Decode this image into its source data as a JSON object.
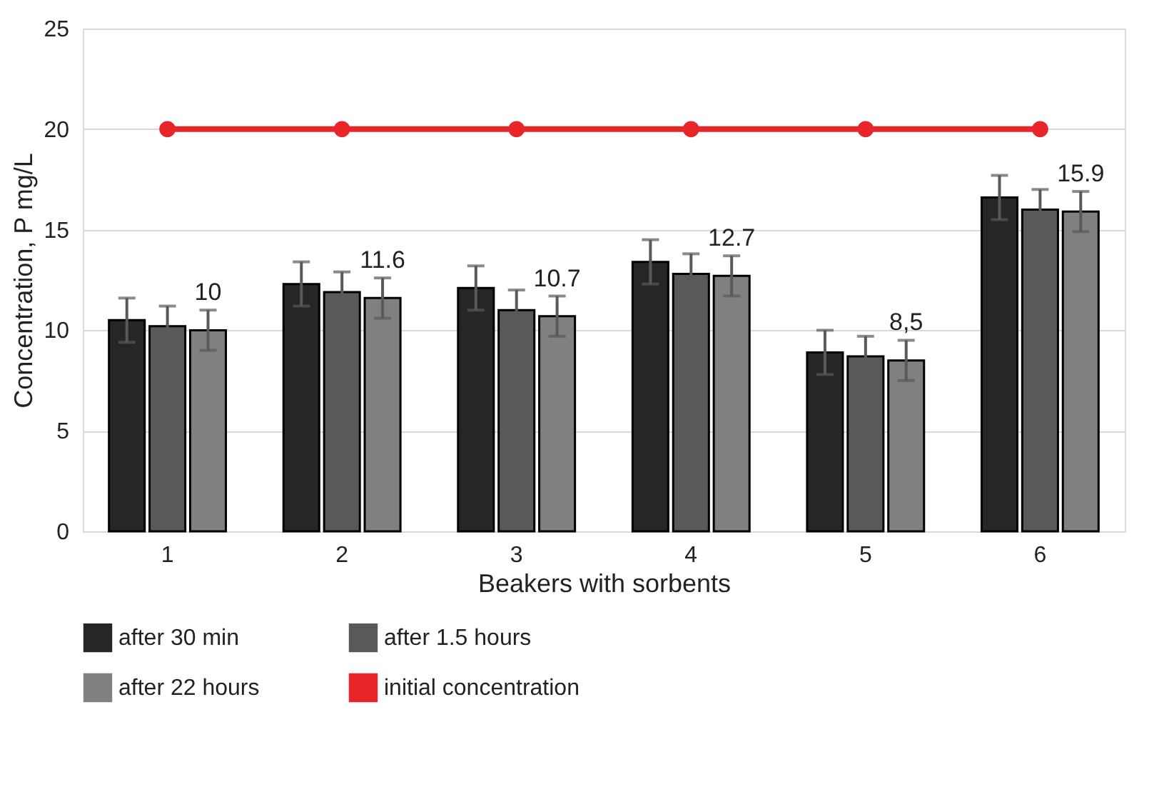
{
  "chart_data": {
    "type": "bar",
    "xlabel": "Beakers with sorbents",
    "ylabel": "Concentration, P mg/L",
    "categories": [
      "1",
      "2",
      "3",
      "4",
      "5",
      "6"
    ],
    "series": [
      {
        "name": "after 30 min",
        "color": "#262626",
        "values": [
          10.5,
          12.3,
          12.1,
          13.4,
          8.9,
          16.6
        ],
        "errors": [
          1.1,
          1.1,
          1.1,
          1.1,
          1.1,
          1.1
        ]
      },
      {
        "name": "after 1.5 hours",
        "color": "#595959",
        "values": [
          10.2,
          11.9,
          11.0,
          12.8,
          8.7,
          16.0
        ],
        "errors": [
          1.0,
          1.0,
          1.0,
          1.0,
          1.0,
          1.0
        ]
      },
      {
        "name": "after 22 hours",
        "color": "#808080",
        "values": [
          10.0,
          11.6,
          10.7,
          12.7,
          8.5,
          15.9
        ],
        "errors": [
          1.0,
          1.0,
          1.0,
          1.0,
          1.0,
          1.0
        ],
        "value_labels": [
          "10",
          "11.6",
          "10.7",
          "12.7",
          "8,5",
          "15.9"
        ]
      },
      {
        "name": "initial concentration",
        "color": "#e8262a",
        "type": "line",
        "marker": "circle",
        "values": [
          20,
          20,
          20,
          20,
          20,
          20
        ]
      }
    ],
    "ylim": [
      0,
      25
    ],
    "yticks": [
      0,
      5,
      10,
      15,
      20,
      25
    ],
    "grid": "y",
    "legend": "bottom"
  }
}
